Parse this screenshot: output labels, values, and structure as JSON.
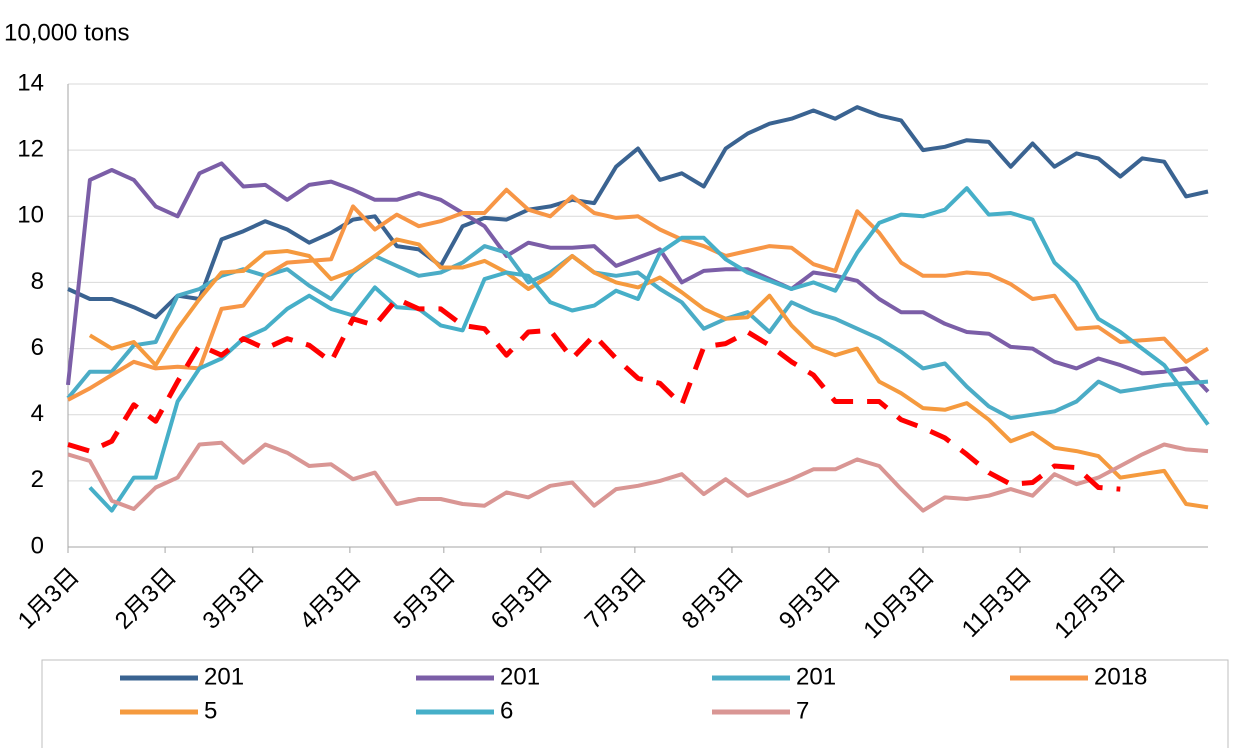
{
  "chart_data": {
    "type": "line",
    "y_label": "10,000 tons",
    "xlim": [
      0,
      364
    ],
    "xticks": [
      {
        "value": 0,
        "label": "1月3日"
      },
      {
        "value": 31,
        "label": "2月3日"
      },
      {
        "value": 59,
        "label": "3月3日"
      },
      {
        "value": 90,
        "label": "4月3日"
      },
      {
        "value": 120,
        "label": "5月3日"
      },
      {
        "value": 151,
        "label": "6月3日"
      },
      {
        "value": 181,
        "label": "7月3日"
      },
      {
        "value": 212,
        "label": "8月3日"
      },
      {
        "value": 243,
        "label": "9月3日"
      },
      {
        "value": 273,
        "label": "10月3日"
      },
      {
        "value": 304,
        "label": "11月3日"
      },
      {
        "value": 334,
        "label": "12月3日"
      }
    ],
    "ylim": [
      0,
      14
    ],
    "yticks": [
      0,
      2,
      4,
      6,
      8,
      10,
      12,
      14
    ],
    "grid": true,
    "x": [
      0,
      7,
      14,
      21,
      28,
      35,
      42,
      49,
      56,
      63,
      70,
      77,
      84,
      91,
      98,
      105,
      112,
      119,
      126,
      133,
      140,
      147,
      154,
      161,
      168,
      175,
      182,
      189,
      196,
      203,
      210,
      217,
      224,
      231,
      238,
      245,
      252,
      259,
      266,
      273,
      280,
      287,
      294,
      301,
      308,
      315,
      322,
      329,
      336,
      343,
      350,
      357,
      364
    ],
    "series": [
      {
        "name": "201",
        "color": "#3a6391",
        "values": [
          7.8,
          7.5,
          7.5,
          7.25,
          6.95,
          7.6,
          7.5,
          9.3,
          9.55,
          9.85,
          9.6,
          9.2,
          9.5,
          9.9,
          10.0,
          9.1,
          9.0,
          8.5,
          9.7,
          9.95,
          9.9,
          10.2,
          10.3,
          10.5,
          10.4,
          11.5,
          12.05,
          11.1,
          11.3,
          10.9,
          12.05,
          12.5,
          12.8,
          12.95,
          13.2,
          12.95,
          13.3,
          13.05,
          12.9,
          12.0,
          12.1,
          12.3,
          12.25,
          11.5,
          12.2,
          11.5,
          11.9,
          11.75,
          11.2,
          11.75,
          11.65,
          10.6,
          10.75
        ]
      },
      {
        "name": "201",
        "color": "#7b5ea7",
        "values": [
          4.9,
          11.1,
          11.4,
          11.1,
          10.3,
          10.0,
          11.3,
          11.6,
          10.9,
          10.95,
          10.5,
          10.95,
          11.05,
          10.8,
          10.5,
          10.5,
          10.7,
          10.5,
          10.1,
          9.7,
          8.8,
          9.2,
          9.05,
          9.05,
          9.1,
          8.5,
          8.75,
          9.0,
          8.0,
          8.35,
          8.4,
          8.4,
          8.1,
          7.8,
          8.3,
          8.2,
          8.05,
          7.5,
          7.1,
          7.1,
          6.75,
          6.5,
          6.45,
          6.05,
          6.0,
          5.6,
          5.4,
          5.7,
          5.5,
          5.25,
          5.3,
          5.4,
          4.7
        ]
      },
      {
        "name": "201",
        "color": "#4bacc6",
        "values": [
          4.5,
          5.3,
          5.3,
          6.1,
          6.2,
          7.6,
          7.8,
          8.2,
          8.4,
          8.2,
          8.4,
          7.9,
          7.5,
          8.3,
          8.8,
          8.5,
          8.2,
          8.3,
          8.6,
          9.1,
          8.9,
          8.0,
          8.3,
          8.8,
          8.3,
          8.2,
          8.3,
          7.8,
          7.4,
          6.6,
          6.9,
          7.1,
          6.5,
          7.4,
          7.1,
          6.9,
          6.6,
          6.3,
          5.9,
          5.4,
          5.55,
          4.85,
          4.25,
          3.9,
          4.0,
          4.1,
          4.4,
          5.0,
          4.7,
          4.8,
          4.9,
          4.95,
          5.0
        ]
      },
      {
        "name": "2018",
        "color": "#f79646",
        "values": [
          4.45,
          4.8,
          5.2,
          5.6,
          5.4,
          5.45,
          5.4,
          7.2,
          7.3,
          8.2,
          8.6,
          8.65,
          8.7,
          10.3,
          9.6,
          10.05,
          9.7,
          9.85,
          10.1,
          10.1,
          10.8,
          10.2,
          10.0,
          10.6,
          10.1,
          9.95,
          10.0,
          9.6,
          9.3,
          9.1,
          8.8,
          8.95,
          9.1,
          9.05,
          8.55,
          8.35,
          10.15,
          9.5,
          8.6,
          8.2,
          8.2,
          8.3,
          8.25,
          7.95,
          7.5,
          7.6,
          6.6,
          6.65,
          6.2,
          6.25,
          6.3,
          5.6,
          6.0
        ]
      },
      {
        "name": "5",
        "color": "#f59a3e",
        "values": [
          null,
          6.4,
          6.0,
          6.2,
          5.5,
          6.6,
          7.5,
          8.3,
          8.35,
          8.9,
          8.95,
          8.8,
          8.1,
          8.35,
          8.8,
          9.3,
          9.15,
          8.45,
          8.45,
          8.65,
          8.3,
          7.8,
          8.2,
          8.8,
          8.3,
          8.0,
          7.85,
          8.15,
          7.7,
          7.2,
          6.9,
          6.95,
          7.6,
          6.7,
          6.05,
          5.8,
          6.0,
          5.0,
          4.65,
          4.2,
          4.15,
          4.35,
          3.85,
          3.2,
          3.45,
          3.0,
          2.9,
          2.75,
          2.1,
          2.2,
          2.3,
          1.3,
          1.2
        ]
      },
      {
        "name": "6",
        "color": "#46afc8",
        "values": [
          null,
          1.8,
          1.1,
          2.1,
          2.1,
          4.4,
          5.4,
          5.7,
          6.3,
          6.6,
          7.2,
          7.6,
          7.2,
          7.0,
          7.85,
          7.25,
          7.2,
          6.7,
          6.55,
          8.1,
          8.3,
          8.2,
          7.4,
          7.15,
          7.3,
          7.75,
          7.5,
          8.9,
          9.35,
          9.35,
          8.7,
          8.3,
          8.05,
          7.8,
          8.0,
          7.75,
          8.9,
          9.8,
          10.05,
          10.0,
          10.2,
          10.85,
          10.05,
          10.1,
          9.9,
          8.6,
          8.0,
          6.9,
          6.5,
          6.0,
          5.5,
          4.6,
          3.7
        ]
      },
      {
        "name": "7",
        "color": "#d99694",
        "values": [
          2.8,
          2.6,
          1.4,
          1.15,
          1.8,
          2.1,
          3.1,
          3.15,
          2.55,
          3.1,
          2.85,
          2.45,
          2.5,
          2.05,
          2.25,
          1.3,
          1.45,
          1.45,
          1.3,
          1.25,
          1.65,
          1.5,
          1.85,
          1.95,
          1.25,
          1.75,
          1.85,
          2.0,
          2.2,
          1.6,
          2.05,
          1.55,
          1.8,
          2.05,
          2.35,
          2.35,
          2.65,
          2.45,
          1.75,
          1.1,
          1.5,
          1.45,
          1.55,
          1.75,
          1.55,
          2.2,
          1.9,
          2.1,
          2.45,
          2.8,
          3.1,
          2.95,
          2.9
        ]
      },
      {
        "color": "#ff0000",
        "dashed": true,
        "values": [
          3.1,
          2.9,
          3.2,
          4.3,
          3.8,
          5.0,
          6.1,
          5.8,
          6.3,
          6.0,
          6.3,
          6.1,
          5.6,
          6.9,
          6.7,
          7.5,
          7.2,
          7.2,
          6.7,
          6.6,
          5.8,
          6.5,
          6.55,
          5.7,
          6.4,
          5.7,
          5.1,
          4.95,
          4.3,
          6.05,
          6.15,
          6.5,
          6.1,
          5.6,
          5.2,
          4.4,
          4.4,
          4.4,
          3.85,
          3.6,
          3.3,
          2.8,
          2.25,
          1.9,
          1.95,
          2.45,
          2.4,
          1.8,
          1.75,
          null,
          null,
          null,
          null
        ]
      }
    ]
  }
}
